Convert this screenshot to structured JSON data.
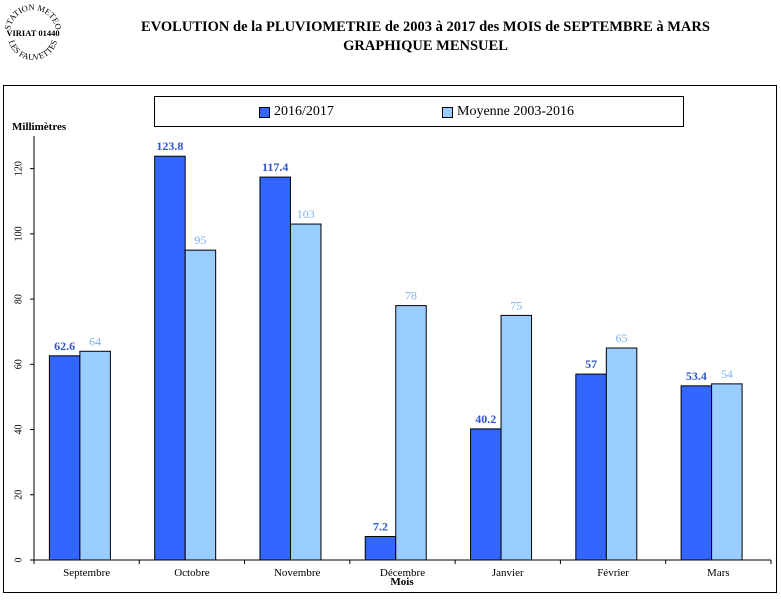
{
  "stamp": {
    "line1": "STATION METEO",
    "line2": "VIRIAT 01440",
    "line3": "LES FAUVETTES"
  },
  "title": {
    "line1": "EVOLUTION de la PLUVIOMETRIE de 2003 à 2017 des MOIS de SEPTEMBRE à MARS",
    "line2": "GRAPHIQUE MENSUEL"
  },
  "chart_data": {
    "type": "bar",
    "title": "EVOLUTION de la PLUVIOMETRIE de 2003 à 2017 des MOIS de SEPTEMBRE à MARS",
    "subtitle": "GRAPHIQUE MENSUEL",
    "ylabel": "Millimètres",
    "xlabel": "Mois",
    "ylim": [
      0,
      130
    ],
    "yticks": [
      0,
      20,
      40,
      60,
      80,
      100,
      120
    ],
    "categories": [
      "Septembre",
      "Octobre",
      "Novembre",
      "Décembre",
      "Janvier",
      "Février",
      "Mars"
    ],
    "series": [
      {
        "name": "2016/2017",
        "color": "#3366ff",
        "label_color": "#2f56c8",
        "values": [
          62.6,
          123.8,
          117.4,
          7.2,
          40.2,
          57,
          53.4
        ],
        "labels": [
          "62.6",
          "123.8",
          "117.4",
          "7.2",
          "40.2",
          "57",
          "53.4"
        ]
      },
      {
        "name": "Moyenne 2003-2016",
        "color": "#99ccff",
        "label_color": "#7fb2ea",
        "values": [
          64,
          95,
          103,
          78,
          75,
          65,
          54
        ],
        "labels": [
          "64",
          "95",
          "103",
          "78",
          "75",
          "65",
          "54"
        ]
      }
    ],
    "legend_position": "top",
    "grid": false
  }
}
